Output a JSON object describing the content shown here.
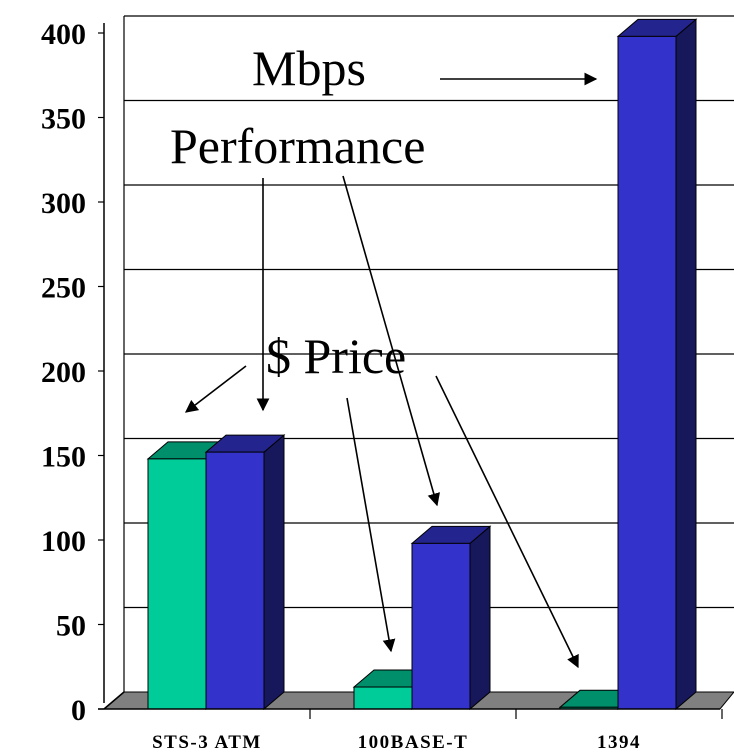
{
  "chart_data": {
    "type": "bar",
    "categories": [
      "STS-3 ATM",
      "100BASE-T",
      "1394"
    ],
    "series": [
      {
        "values": [
          148,
          13,
          1
        ],
        "color": "#00cc99"
      },
      {
        "values": [
          152,
          98,
          398
        ],
        "color": "#3333cc"
      }
    ],
    "ylim": [
      0,
      400
    ],
    "yticks": [
      "0",
      "50",
      "100",
      "150",
      "200",
      "250",
      "300",
      "350",
      "400"
    ],
    "grid": true,
    "annotations": [
      "Mbps",
      "Performance",
      "$ Price"
    ]
  }
}
